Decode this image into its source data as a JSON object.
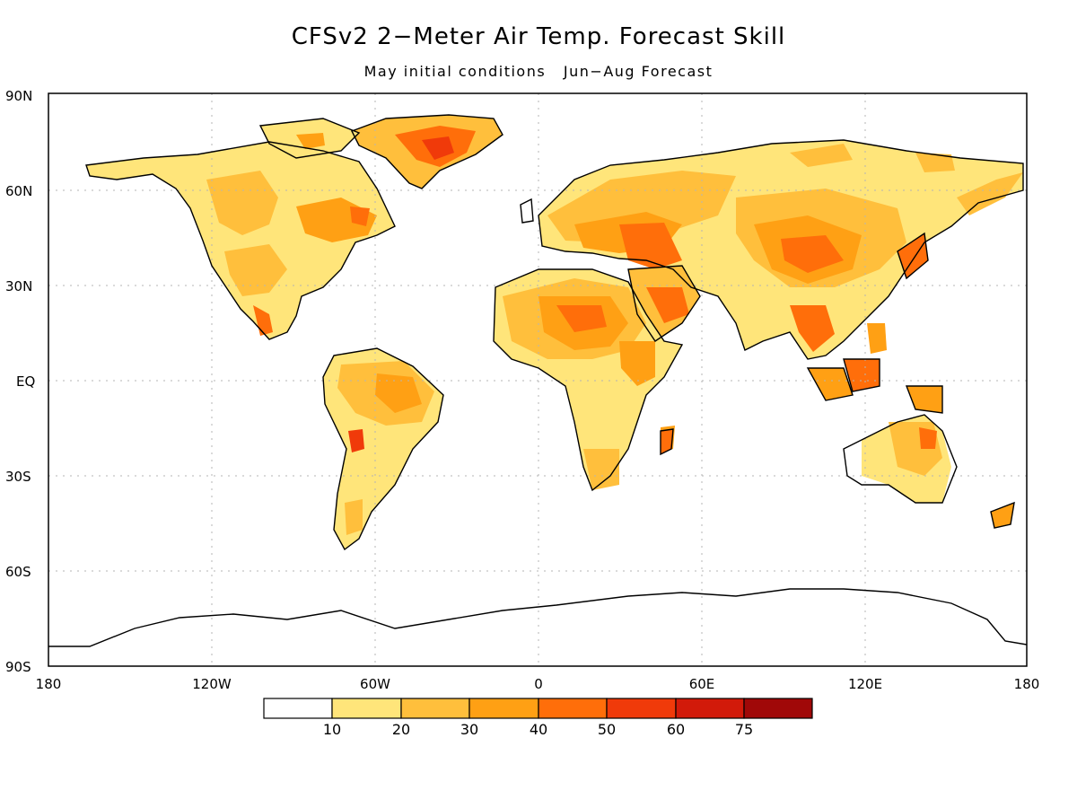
{
  "title": "CFSv2 2−Meter Air Temp. Forecast Skill",
  "subtitle": "May initial conditions   Jun−Aug Forecast",
  "lat_labels": [
    "90N",
    "60N",
    "30N",
    "EQ",
    "30S",
    "60S",
    "90S"
  ],
  "lon_labels": [
    "180",
    "120W",
    "60W",
    "0",
    "60E",
    "120E",
    "180"
  ],
  "colorbar": {
    "labels": [
      "10",
      "20",
      "30",
      "40",
      "50",
      "60",
      "75"
    ],
    "colors": [
      "#ffffff",
      "#ffe57a",
      "#ffbf3c",
      "#ffa014",
      "#ff6e0a",
      "#f03a0a",
      "#d21a0a",
      "#a00808"
    ]
  },
  "colors": {
    "coastline": "#000000",
    "gridline": "#b4b4b4",
    "frame": "#000000"
  }
}
